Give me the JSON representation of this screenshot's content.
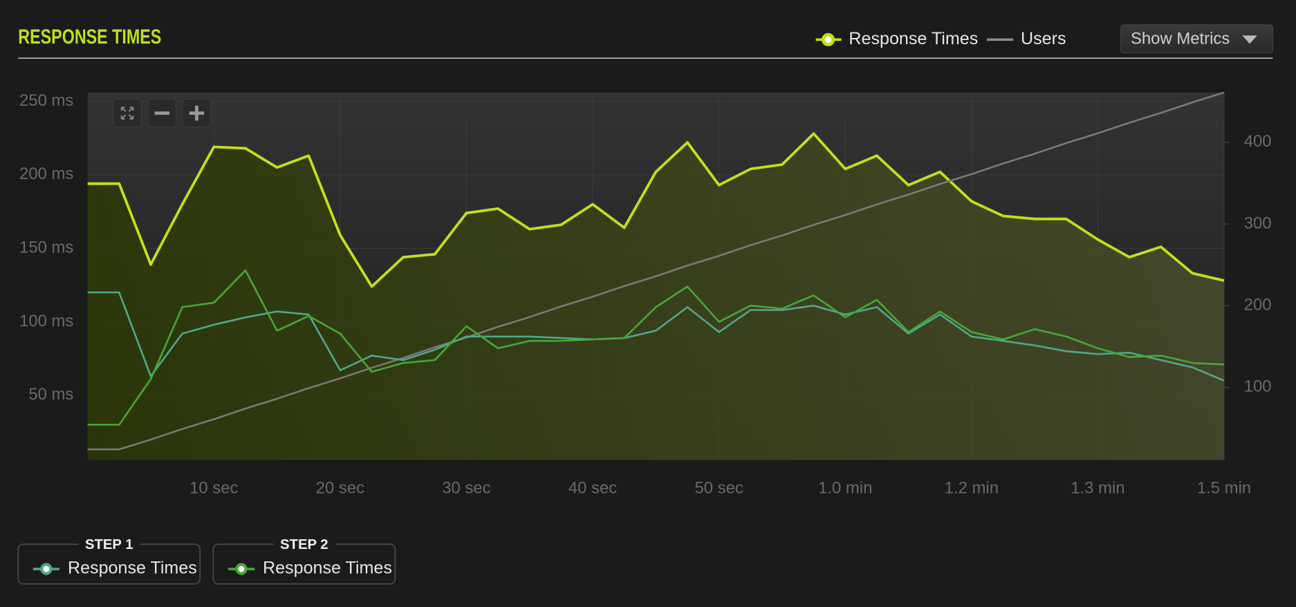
{
  "chart_data": {
    "type": "line",
    "title": "RESPONSE TIMES",
    "x": [
      0,
      2.5,
      5,
      7.5,
      10,
      12.5,
      15,
      17.5,
      20,
      22.5,
      25,
      27.5,
      30,
      32.5,
      35,
      37.5,
      40,
      42.5,
      45,
      47.5,
      50,
      52.5,
      55,
      57.5,
      60,
      62.5,
      65,
      67.5,
      70,
      72.5,
      75,
      77.5,
      80,
      82.5,
      85,
      87.5,
      90
    ],
    "xlim": [
      0,
      90
    ],
    "xticks": [
      {
        "value": 10,
        "label": "10 sec"
      },
      {
        "value": 20,
        "label": "20 sec"
      },
      {
        "value": 30,
        "label": "30 sec"
      },
      {
        "value": 40,
        "label": "40 sec"
      },
      {
        "value": 50,
        "label": "50 sec"
      },
      {
        "value": 60,
        "label": "1.0 min"
      },
      {
        "value": 70,
        "label": "1.2 min"
      },
      {
        "value": 80,
        "label": "1.3 min"
      },
      {
        "value": 90,
        "label": "1.5 min"
      }
    ],
    "ylim": [
      6,
      256
    ],
    "yticks": [
      {
        "value": 50,
        "label": "50 ms"
      },
      {
        "value": 100,
        "label": "100 ms"
      },
      {
        "value": 150,
        "label": "150 ms"
      },
      {
        "value": 200,
        "label": "200 ms"
      },
      {
        "value": 250,
        "label": "250 ms"
      }
    ],
    "y2lim": [
      11,
      461
    ],
    "y2ticks": [
      100,
      200,
      300,
      400
    ],
    "grid": true,
    "series": [
      {
        "name": "Response Times",
        "color": "#c3df1c",
        "values": [
          194,
          194,
          139,
          180,
          219,
          218,
          205,
          213,
          159,
          124,
          144,
          146,
          174,
          177,
          163,
          166,
          180,
          164,
          202,
          222,
          193,
          204,
          207,
          228,
          204,
          213,
          193,
          202,
          182,
          172,
          170,
          170,
          156,
          144,
          151,
          133,
          128
        ]
      },
      {
        "name": "Response Times",
        "step": "STEP 1",
        "color": "#4fa88c",
        "values": [
          120,
          120,
          63,
          92,
          98,
          103,
          107,
          105,
          67,
          77,
          74,
          81,
          90,
          90,
          90,
          89,
          88,
          89,
          94,
          110,
          93,
          108,
          108,
          111,
          105,
          110,
          92,
          105,
          90,
          87,
          84,
          80,
          78,
          79,
          74,
          69,
          60
        ]
      },
      {
        "name": "Response Times",
        "step": "STEP 2",
        "color": "#47a83a",
        "values": [
          30,
          30,
          61,
          110,
          113,
          135,
          94,
          104,
          92,
          66,
          72,
          74,
          97,
          82,
          87,
          87,
          88,
          89,
          110,
          124,
          100,
          111,
          109,
          118,
          103,
          115,
          93,
          107,
          93,
          88,
          95,
          90,
          82,
          76,
          77,
          72,
          71
        ]
      },
      {
        "name": "Users",
        "color": "#7a7a7a",
        "axis": "y2",
        "values": [
          24,
          24,
          36,
          49,
          61,
          74,
          86,
          99,
          111,
          124,
          136,
          149,
          161,
          174,
          186,
          199,
          211,
          224,
          236,
          249,
          261,
          274,
          286,
          299,
          311,
          324,
          336,
          349,
          361,
          374,
          386,
          399,
          411,
          424,
          436,
          449,
          461
        ]
      }
    ]
  },
  "button": "Show Metrics"
}
